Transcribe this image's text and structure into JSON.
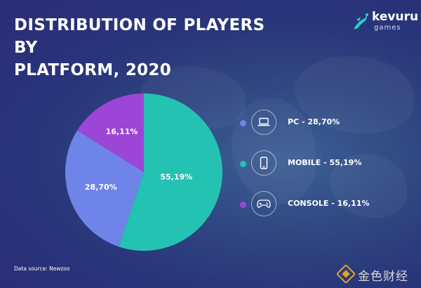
{
  "header": {
    "title_line1": "DISTRIBUTION OF PLAYERS BY",
    "title_line2": "PLATFORM, 2020"
  },
  "logo": {
    "name": "kevuru",
    "sub": "games"
  },
  "chart_data": {
    "type": "pie",
    "title": "DISTRIBUTION OF PLAYERS BY PLATFORM, 2020",
    "slices": [
      {
        "name": "MOBILE",
        "value": 55.19,
        "label": "55,19%",
        "color": "#23c2b3",
        "icon": "smartphone-icon",
        "legend": "MOBILE - 55,19%"
      },
      {
        "name": "PC",
        "value": 28.7,
        "label": "28,70%",
        "color": "#6e84e8",
        "icon": "laptop-icon",
        "legend": "PC - 28,70%"
      },
      {
        "name": "CONSOLE",
        "value": 16.11,
        "label": "16,11%",
        "color": "#9d45d6",
        "icon": "gamepad-icon",
        "legend": "CONSOLE - 16,11%"
      }
    ],
    "start_angle_deg": 0,
    "direction": "clockwise",
    "legend_placement": "right"
  },
  "legend_order": [
    1,
    0,
    2
  ],
  "footer": {
    "source": "Data source: Newzoo"
  },
  "watermark": {
    "text": "金色财经"
  }
}
